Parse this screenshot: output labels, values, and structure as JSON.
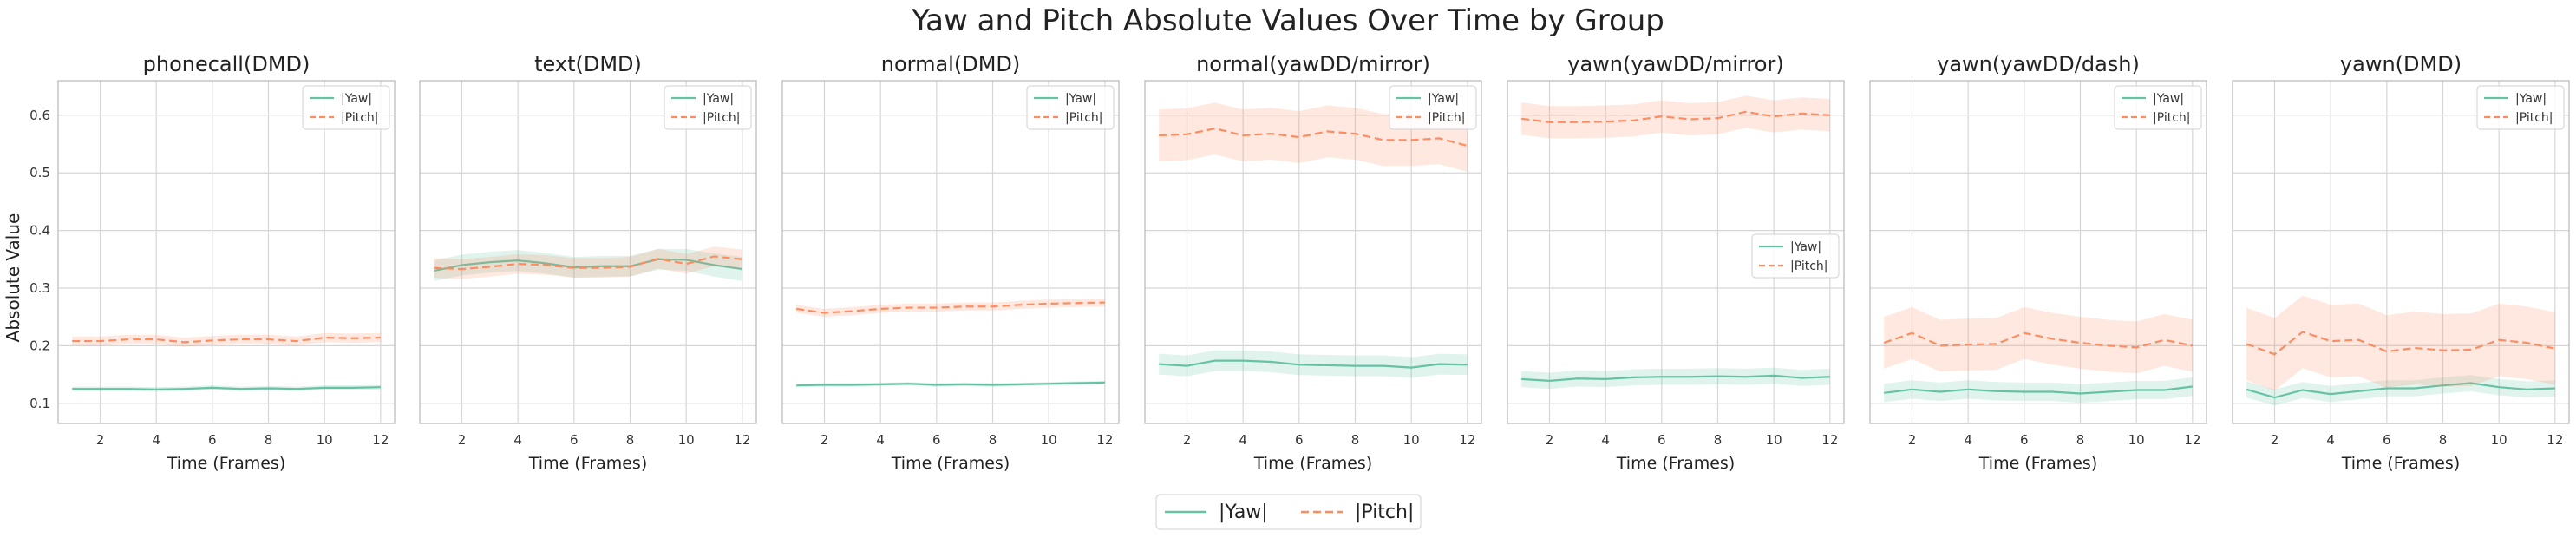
{
  "figure": {
    "title": "Yaw and Pitch Absolute Values Over Time by Group",
    "ylabel": "Absolute Value",
    "xlabel": "Time (Frames)"
  },
  "legend": {
    "entries": [
      "|Yaw|",
      "|Pitch|"
    ]
  },
  "colors": {
    "yaw": "#66c2a5",
    "pitch": "#fc8d62",
    "grid": "#d6d6d6",
    "frame": "#bcbcbc"
  },
  "chart_data": [
    {
      "type": "line",
      "title": "phonecall(DMD)",
      "xlabel": "Time (Frames)",
      "ylabel": "Absolute Value",
      "xlim": [
        0.5,
        12.5
      ],
      "ylim": [
        0.065,
        0.66
      ],
      "grid": true,
      "legend": "top-right",
      "x": [
        1,
        2,
        3,
        4,
        5,
        6,
        7,
        8,
        9,
        10,
        11,
        12
      ],
      "series": [
        {
          "name": "|Yaw|",
          "values": [
            0.125,
            0.125,
            0.125,
            0.124,
            0.125,
            0.127,
            0.125,
            0.126,
            0.125,
            0.127,
            0.127,
            0.128
          ],
          "lower": [
            0.121,
            0.121,
            0.121,
            0.12,
            0.121,
            0.123,
            0.121,
            0.122,
            0.121,
            0.123,
            0.123,
            0.124
          ],
          "upper": [
            0.129,
            0.129,
            0.129,
            0.128,
            0.129,
            0.131,
            0.129,
            0.13,
            0.129,
            0.131,
            0.131,
            0.132
          ]
        },
        {
          "name": "|Pitch|",
          "values": [
            0.208,
            0.208,
            0.211,
            0.211,
            0.206,
            0.209,
            0.211,
            0.211,
            0.208,
            0.214,
            0.213,
            0.214
          ],
          "lower": [
            0.2,
            0.2,
            0.203,
            0.203,
            0.198,
            0.201,
            0.203,
            0.203,
            0.2,
            0.206,
            0.205,
            0.206
          ],
          "upper": [
            0.216,
            0.216,
            0.219,
            0.219,
            0.214,
            0.217,
            0.219,
            0.219,
            0.216,
            0.222,
            0.221,
            0.222
          ]
        }
      ]
    },
    {
      "type": "line",
      "title": "text(DMD)",
      "xlabel": "Time (Frames)",
      "ylabel": "",
      "xlim": [
        0.5,
        12.5
      ],
      "ylim": [
        0.065,
        0.66
      ],
      "grid": true,
      "legend": "top-right",
      "x": [
        1,
        2,
        3,
        4,
        5,
        6,
        7,
        8,
        9,
        10,
        11,
        12
      ],
      "series": [
        {
          "name": "|Yaw|",
          "values": [
            0.33,
            0.34,
            0.345,
            0.348,
            0.343,
            0.336,
            0.338,
            0.338,
            0.35,
            0.349,
            0.34,
            0.333
          ],
          "lower": [
            0.312,
            0.322,
            0.327,
            0.33,
            0.325,
            0.318,
            0.32,
            0.32,
            0.332,
            0.33,
            0.32,
            0.312
          ],
          "upper": [
            0.348,
            0.358,
            0.363,
            0.366,
            0.361,
            0.354,
            0.356,
            0.356,
            0.368,
            0.368,
            0.36,
            0.354
          ]
        },
        {
          "name": "|Pitch|",
          "values": [
            0.335,
            0.333,
            0.337,
            0.342,
            0.34,
            0.335,
            0.335,
            0.337,
            0.351,
            0.342,
            0.355,
            0.35
          ],
          "lower": [
            0.318,
            0.316,
            0.32,
            0.325,
            0.323,
            0.318,
            0.318,
            0.32,
            0.334,
            0.325,
            0.338,
            0.333
          ],
          "upper": [
            0.352,
            0.35,
            0.354,
            0.359,
            0.357,
            0.352,
            0.352,
            0.354,
            0.368,
            0.359,
            0.372,
            0.367
          ]
        }
      ]
    },
    {
      "type": "line",
      "title": "normal(DMD)",
      "xlabel": "Time (Frames)",
      "ylabel": "",
      "xlim": [
        0.5,
        12.5
      ],
      "ylim": [
        0.065,
        0.66
      ],
      "grid": true,
      "legend": "top-right",
      "x": [
        1,
        2,
        3,
        4,
        5,
        6,
        7,
        8,
        9,
        10,
        11,
        12
      ],
      "series": [
        {
          "name": "|Yaw|",
          "values": [
            0.131,
            0.132,
            0.132,
            0.133,
            0.134,
            0.132,
            0.133,
            0.132,
            0.133,
            0.134,
            0.135,
            0.136
          ],
          "lower": [
            0.128,
            0.129,
            0.129,
            0.13,
            0.131,
            0.129,
            0.13,
            0.129,
            0.13,
            0.131,
            0.132,
            0.133
          ],
          "upper": [
            0.134,
            0.135,
            0.135,
            0.136,
            0.137,
            0.135,
            0.136,
            0.135,
            0.136,
            0.137,
            0.138,
            0.139
          ]
        },
        {
          "name": "|Pitch|",
          "values": [
            0.264,
            0.257,
            0.26,
            0.264,
            0.266,
            0.266,
            0.268,
            0.268,
            0.271,
            0.273,
            0.274,
            0.275
          ],
          "lower": [
            0.257,
            0.25,
            0.253,
            0.257,
            0.259,
            0.259,
            0.261,
            0.261,
            0.264,
            0.266,
            0.267,
            0.268
          ],
          "upper": [
            0.271,
            0.264,
            0.267,
            0.271,
            0.273,
            0.273,
            0.275,
            0.275,
            0.278,
            0.28,
            0.281,
            0.282
          ]
        }
      ]
    },
    {
      "type": "line",
      "title": "normal(yawDD/mirror)",
      "xlabel": "Time (Frames)",
      "ylabel": "",
      "xlim": [
        0.5,
        12.5
      ],
      "ylim": [
        0.065,
        0.66
      ],
      "grid": true,
      "legend": "top-right",
      "x": [
        1,
        2,
        3,
        4,
        5,
        6,
        7,
        8,
        9,
        10,
        11,
        12
      ],
      "series": [
        {
          "name": "|Yaw|",
          "values": [
            0.168,
            0.165,
            0.174,
            0.174,
            0.172,
            0.167,
            0.166,
            0.165,
            0.165,
            0.162,
            0.168,
            0.167
          ],
          "lower": [
            0.15,
            0.147,
            0.156,
            0.156,
            0.154,
            0.149,
            0.148,
            0.147,
            0.147,
            0.144,
            0.15,
            0.149
          ],
          "upper": [
            0.186,
            0.183,
            0.192,
            0.192,
            0.19,
            0.185,
            0.184,
            0.183,
            0.183,
            0.18,
            0.186,
            0.185
          ]
        },
        {
          "name": "|Pitch|",
          "values": [
            0.565,
            0.567,
            0.577,
            0.565,
            0.568,
            0.562,
            0.572,
            0.568,
            0.557,
            0.557,
            0.56,
            0.547
          ],
          "lower": [
            0.52,
            0.522,
            0.532,
            0.52,
            0.523,
            0.517,
            0.527,
            0.523,
            0.512,
            0.512,
            0.515,
            0.502
          ],
          "upper": [
            0.61,
            0.612,
            0.622,
            0.61,
            0.613,
            0.607,
            0.617,
            0.613,
            0.602,
            0.602,
            0.605,
            0.592
          ]
        }
      ]
    },
    {
      "type": "line",
      "title": "yawn(yawDD/mirror)",
      "xlabel": "Time (Frames)",
      "ylabel": "",
      "xlim": [
        0.5,
        12.5
      ],
      "ylim": [
        0.065,
        0.66
      ],
      "grid": true,
      "legend": "center-right",
      "x": [
        1,
        2,
        3,
        4,
        5,
        6,
        7,
        8,
        9,
        10,
        11,
        12
      ],
      "series": [
        {
          "name": "|Yaw|",
          "values": [
            0.142,
            0.139,
            0.143,
            0.142,
            0.145,
            0.146,
            0.146,
            0.147,
            0.146,
            0.148,
            0.144,
            0.146
          ],
          "lower": [
            0.128,
            0.125,
            0.129,
            0.128,
            0.131,
            0.132,
            0.132,
            0.133,
            0.132,
            0.134,
            0.13,
            0.132
          ],
          "upper": [
            0.156,
            0.153,
            0.157,
            0.156,
            0.159,
            0.16,
            0.16,
            0.161,
            0.16,
            0.162,
            0.158,
            0.16
          ]
        },
        {
          "name": "|Pitch|",
          "values": [
            0.594,
            0.588,
            0.588,
            0.589,
            0.591,
            0.598,
            0.593,
            0.595,
            0.606,
            0.598,
            0.603,
            0.6
          ],
          "lower": [
            0.566,
            0.56,
            0.56,
            0.561,
            0.563,
            0.57,
            0.565,
            0.567,
            0.578,
            0.57,
            0.575,
            0.572
          ],
          "upper": [
            0.622,
            0.616,
            0.616,
            0.617,
            0.619,
            0.626,
            0.621,
            0.623,
            0.634,
            0.626,
            0.631,
            0.628
          ]
        }
      ]
    },
    {
      "type": "line",
      "title": "yawn(yawDD/dash)",
      "xlabel": "Time (Frames)",
      "ylabel": "",
      "xlim": [
        0.5,
        12.5
      ],
      "ylim": [
        0.065,
        0.66
      ],
      "grid": true,
      "legend": "top-right",
      "x": [
        1,
        2,
        3,
        4,
        5,
        6,
        7,
        8,
        9,
        10,
        11,
        12
      ],
      "series": [
        {
          "name": "|Yaw|",
          "values": [
            0.118,
            0.124,
            0.12,
            0.124,
            0.121,
            0.12,
            0.12,
            0.117,
            0.12,
            0.123,
            0.123,
            0.129
          ],
          "lower": [
            0.102,
            0.108,
            0.104,
            0.108,
            0.105,
            0.104,
            0.104,
            0.101,
            0.104,
            0.107,
            0.107,
            0.113
          ],
          "upper": [
            0.134,
            0.14,
            0.136,
            0.14,
            0.137,
            0.136,
            0.136,
            0.133,
            0.136,
            0.139,
            0.139,
            0.145
          ]
        },
        {
          "name": "|Pitch|",
          "values": [
            0.205,
            0.222,
            0.2,
            0.202,
            0.203,
            0.222,
            0.212,
            0.205,
            0.2,
            0.197,
            0.21,
            0.2
          ],
          "lower": [
            0.16,
            0.177,
            0.155,
            0.157,
            0.158,
            0.177,
            0.167,
            0.16,
            0.155,
            0.152,
            0.165,
            0.155
          ],
          "upper": [
            0.25,
            0.267,
            0.245,
            0.247,
            0.248,
            0.267,
            0.257,
            0.25,
            0.245,
            0.242,
            0.255,
            0.245
          ]
        }
      ]
    },
    {
      "type": "line",
      "title": "yawn(DMD)",
      "xlabel": "Time (Frames)",
      "ylabel": "",
      "xlim": [
        0.5,
        12.5
      ],
      "ylim": [
        0.065,
        0.66
      ],
      "grid": true,
      "legend": "top-right",
      "x": [
        1,
        2,
        3,
        4,
        5,
        6,
        7,
        8,
        9,
        10,
        11,
        12
      ],
      "series": [
        {
          "name": "|Yaw|",
          "values": [
            0.124,
            0.11,
            0.123,
            0.116,
            0.121,
            0.126,
            0.126,
            0.131,
            0.135,
            0.128,
            0.124,
            0.126
          ],
          "lower": [
            0.11,
            0.096,
            0.109,
            0.102,
            0.107,
            0.112,
            0.112,
            0.117,
            0.121,
            0.114,
            0.11,
            0.112
          ],
          "upper": [
            0.138,
            0.124,
            0.137,
            0.13,
            0.135,
            0.14,
            0.14,
            0.145,
            0.149,
            0.142,
            0.138,
            0.14
          ]
        },
        {
          "name": "|Pitch|",
          "values": [
            0.203,
            0.185,
            0.224,
            0.208,
            0.21,
            0.19,
            0.196,
            0.192,
            0.193,
            0.21,
            0.205,
            0.195
          ],
          "lower": [
            0.14,
            0.122,
            0.161,
            0.145,
            0.147,
            0.127,
            0.133,
            0.129,
            0.13,
            0.147,
            0.142,
            0.132
          ],
          "upper": [
            0.266,
            0.248,
            0.287,
            0.271,
            0.273,
            0.253,
            0.259,
            0.255,
            0.256,
            0.273,
            0.268,
            0.258
          ]
        }
      ]
    }
  ]
}
